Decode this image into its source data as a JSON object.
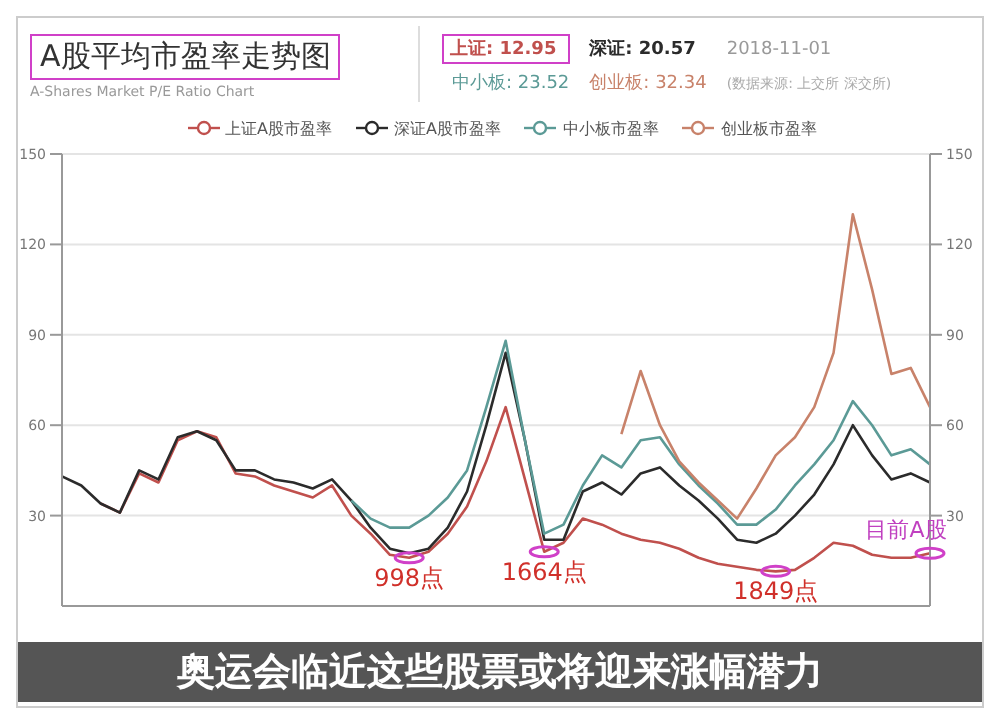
{
  "chart_data": {
    "type": "line",
    "title": "A股平均市盈率走势图",
    "subtitle": "A-Shares Market P/E Ratio Chart",
    "categories": [
      null,
      null,
      null,
      null,
      null,
      null,
      null,
      null,
      null,
      null,
      null,
      null,
      null,
      null,
      null,
      null,
      null,
      null,
      null,
      null,
      null,
      null,
      null,
      null,
      null,
      null,
      null,
      null,
      null,
      null,
      null,
      null,
      null,
      null,
      null,
      null,
      null,
      null,
      null,
      null,
      null,
      null,
      null,
      null,
      null,
      null
    ],
    "series": [
      {
        "name": "上证A股市盈率",
        "color": "#c0504d",
        "values": [
          null,
          null,
          34,
          31,
          44,
          41,
          55,
          58,
          56,
          44,
          43,
          40,
          38,
          36,
          40,
          30,
          24,
          17,
          16,
          18,
          24,
          33,
          48,
          66,
          42,
          18,
          21,
          29,
          27,
          24,
          22,
          21,
          19,
          16,
          14,
          13,
          12,
          11.5,
          12,
          16,
          21,
          20,
          17,
          16,
          16,
          17.5
        ]
      },
      {
        "name": "深证A股市盈率",
        "color": "#2b2b2b",
        "values": [
          43,
          40,
          34,
          31,
          45,
          42,
          56,
          58,
          55,
          45,
          45,
          42,
          41,
          39,
          42,
          35,
          26,
          19,
          17.5,
          19,
          26,
          38,
          60,
          84,
          55,
          22,
          22,
          38,
          41,
          37,
          44,
          46,
          40,
          35,
          29,
          22,
          21,
          24,
          30,
          37,
          47,
          60,
          50,
          42,
          44,
          41
        ]
      },
      {
        "name": "中小板市盈率",
        "color": "#5b9a96",
        "values": [
          null,
          null,
          null,
          null,
          null,
          null,
          null,
          null,
          null,
          null,
          null,
          null,
          null,
          null,
          null,
          35,
          29,
          26,
          26,
          30,
          36,
          45,
          66,
          88,
          55,
          24,
          27,
          40,
          50,
          46,
          55,
          56,
          47,
          40,
          34,
          27,
          27,
          32,
          40,
          47,
          55,
          68,
          60,
          50,
          52,
          47
        ]
      },
      {
        "name": "创业板市盈率",
        "color": "#c8826a",
        "values": [
          null,
          null,
          null,
          null,
          null,
          null,
          null,
          null,
          null,
          null,
          null,
          null,
          null,
          null,
          null,
          null,
          null,
          null,
          null,
          null,
          null,
          null,
          null,
          null,
          null,
          null,
          null,
          null,
          null,
          57,
          78,
          60,
          48,
          41,
          35,
          29,
          39,
          50,
          56,
          66,
          84,
          130,
          105,
          77,
          79,
          66
        ]
      }
    ],
    "ylim": [
      0,
      150
    ],
    "yticks": [
      30,
      60,
      90,
      120,
      150
    ],
    "y2lim": [
      0,
      150
    ],
    "y2ticks": [
      30,
      60,
      90,
      120,
      150
    ],
    "grid": "y",
    "legend": "top",
    "marker": "none",
    "line_style": "solid",
    "annotations": [
      "上证: 12.95",
      "深证: 20.57",
      "2018-11-01",
      "中小板: 23.52",
      "创业板: 32.34",
      "(数据来源: 上交所 深交所)",
      {
        "text": "998点",
        "y": 16
      },
      {
        "text": "1664点",
        "y": 18
      },
      {
        "text": "1849点",
        "y": 11.5
      },
      {
        "text": "目前A股",
        "y": 17.5
      },
      "奥运会临近这些股票或将迎来涨幅潜力"
    ]
  }
}
